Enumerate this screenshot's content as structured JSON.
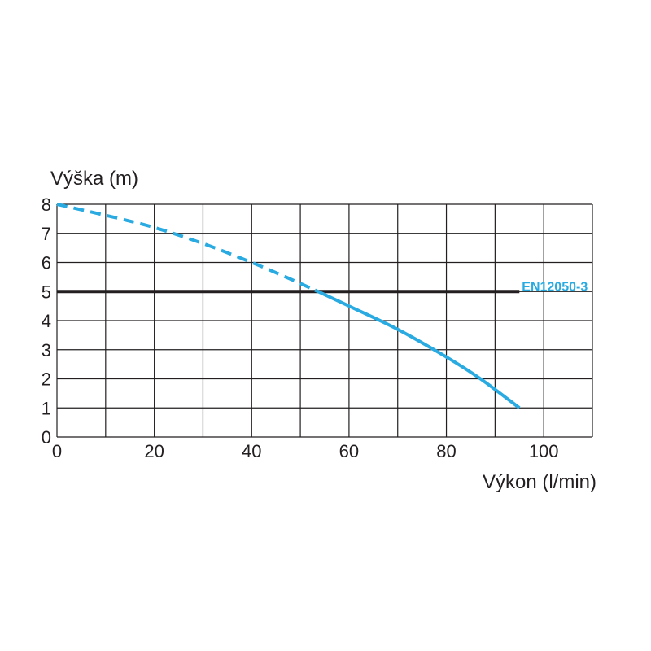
{
  "chart_data": {
    "type": "line",
    "title": "",
    "xlabel": "Výkon (l/min)",
    "ylabel": "Výška (m)",
    "xlim": [
      0,
      110
    ],
    "ylim": [
      0,
      8
    ],
    "x_ticks": [
      "0",
      "20",
      "40",
      "60",
      "80",
      "100"
    ],
    "y_ticks": [
      "0",
      "1",
      "2",
      "3",
      "4",
      "5",
      "6",
      "7",
      "8"
    ],
    "grid": true,
    "series": [
      {
        "name": "",
        "style": "dashed",
        "color": "#29abe2",
        "points": [
          [
            0,
            8
          ],
          [
            10,
            7.62
          ],
          [
            20,
            7.2
          ],
          [
            30,
            6.65
          ],
          [
            40,
            6.0
          ],
          [
            47,
            5.5
          ],
          [
            53,
            5.05
          ]
        ]
      },
      {
        "name": "",
        "style": "solid",
        "color": "#29abe2",
        "points": [
          [
            53,
            5.05
          ],
          [
            60,
            4.5
          ],
          [
            70,
            3.7
          ],
          [
            80,
            2.75
          ],
          [
            87,
            2.0
          ],
          [
            95,
            1.0
          ]
        ]
      }
    ],
    "reference_line": {
      "label": "EN12050-3",
      "y": 5,
      "x_range": [
        0,
        95
      ],
      "color": "#231f20",
      "label_color": "#29abe2"
    }
  }
}
